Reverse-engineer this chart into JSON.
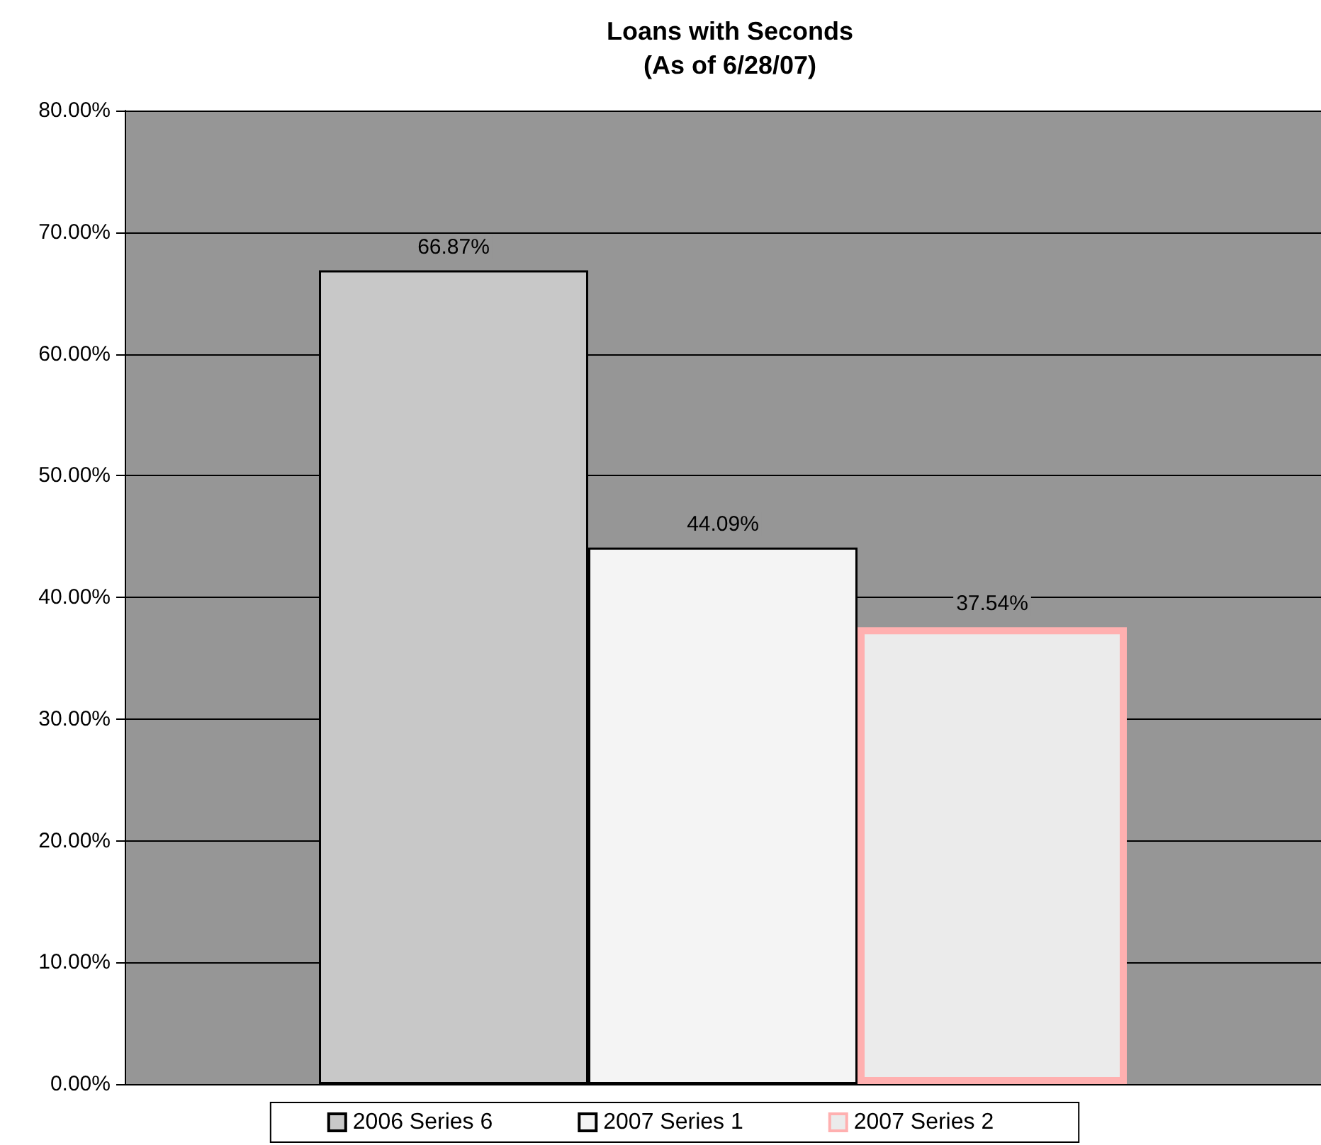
{
  "chart_data": {
    "type": "bar",
    "title": "Loans with Seconds",
    "subtitle": "(As of 6/28/07)",
    "categories": [
      null
    ],
    "series": [
      {
        "name": "2006 Series 6",
        "color": "#c8c8c8",
        "values": [
          66.87
        ],
        "value_labels": [
          "66.87%"
        ]
      },
      {
        "name": "2007 Series 1",
        "color": "#f4f4f4",
        "values": [
          44.09
        ],
        "value_labels": [
          "44.09%"
        ]
      },
      {
        "name": "2007 Series 2",
        "color": "#ebebeb",
        "values": [
          37.54
        ],
        "value_labels": [
          "37.54%"
        ]
      }
    ],
    "ylim": [
      0,
      80
    ],
    "yticks": [
      {
        "value": 0,
        "label": "0.00%"
      },
      {
        "value": 10,
        "label": "10.00%"
      },
      {
        "value": 20,
        "label": "20.00%"
      },
      {
        "value": 30,
        "label": "30.00%"
      },
      {
        "value": 40,
        "label": "40.00%"
      },
      {
        "value": 50,
        "label": "50.00%"
      },
      {
        "value": 60,
        "label": "60.00%"
      },
      {
        "value": 70,
        "label": "70.00%"
      },
      {
        "value": 80,
        "label": "80.00%"
      }
    ],
    "grid": "y",
    "legend": "bottom"
  }
}
